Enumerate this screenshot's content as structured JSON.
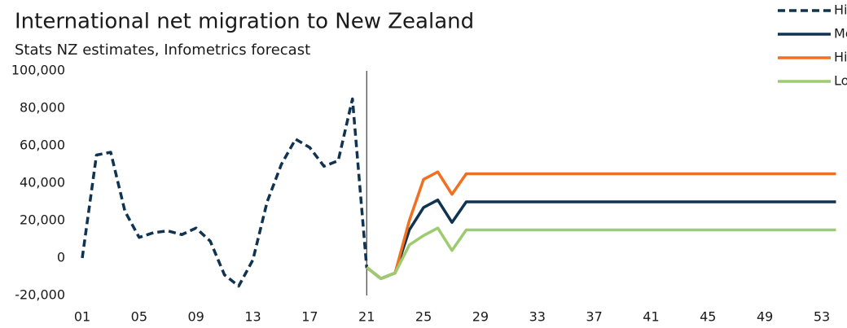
{
  "chart_data": {
    "type": "line",
    "title": "International net migration to New Zealand",
    "subtitle": "Stats NZ estimates, Infometrics forecast",
    "x": [
      1,
      2,
      3,
      4,
      5,
      6,
      7,
      8,
      9,
      10,
      11,
      12,
      13,
      14,
      15,
      16,
      17,
      18,
      19,
      20,
      21,
      22,
      23,
      24,
      25,
      26,
      27,
      28,
      29,
      30,
      31,
      32,
      33,
      34,
      35,
      36,
      37,
      38,
      39,
      40,
      41,
      42,
      43,
      44,
      45,
      46,
      47,
      48,
      49,
      50,
      51,
      52,
      53,
      54
    ],
    "series": [
      {
        "name": "Historical",
        "color": "#0f3350",
        "dashed": true,
        "values": [
          0,
          55000,
          56500,
          25000,
          11000,
          13500,
          14500,
          12500,
          16000,
          9000,
          -9000,
          -15000,
          -1000,
          30000,
          50000,
          63500,
          59000,
          49000,
          52000,
          85000,
          -5000,
          -11000,
          -8000,
          null,
          null,
          null,
          null,
          null,
          null,
          null,
          null,
          null,
          null,
          null,
          null,
          null,
          null,
          null,
          null,
          null,
          null,
          null,
          null,
          null,
          null,
          null,
          null,
          null,
          null,
          null,
          null,
          null,
          null,
          null
        ]
      },
      {
        "name": "Medium",
        "color": "#0f3350",
        "values": [
          null,
          null,
          null,
          null,
          null,
          null,
          null,
          null,
          null,
          null,
          null,
          null,
          null,
          null,
          null,
          null,
          null,
          null,
          null,
          null,
          -5000,
          -11000,
          -8000,
          15000,
          27000,
          31000,
          19000,
          30000,
          30000,
          30000,
          30000,
          30000,
          30000,
          30000,
          30000,
          30000,
          30000,
          30000,
          30000,
          30000,
          30000,
          30000,
          30000,
          30000,
          30000,
          30000,
          30000,
          30000,
          30000,
          30000,
          30000,
          30000,
          30000,
          30000
        ]
      },
      {
        "name": "High",
        "color": "#f07021",
        "values": [
          null,
          null,
          null,
          null,
          null,
          null,
          null,
          null,
          null,
          null,
          null,
          null,
          null,
          null,
          null,
          null,
          null,
          null,
          null,
          null,
          -5000,
          -11000,
          -8000,
          20000,
          42000,
          46000,
          34000,
          45000,
          45000,
          45000,
          45000,
          45000,
          45000,
          45000,
          45000,
          45000,
          45000,
          45000,
          45000,
          45000,
          45000,
          45000,
          45000,
          45000,
          45000,
          45000,
          45000,
          45000,
          45000,
          45000,
          45000,
          45000,
          45000,
          45000
        ]
      },
      {
        "name": "Low",
        "color": "#9dcb6f",
        "values": [
          null,
          null,
          null,
          null,
          null,
          null,
          null,
          null,
          null,
          null,
          null,
          null,
          null,
          null,
          null,
          null,
          null,
          null,
          null,
          null,
          -5000,
          -11000,
          -8000,
          7000,
          12000,
          16000,
          4000,
          15000,
          15000,
          15000,
          15000,
          15000,
          15000,
          15000,
          15000,
          15000,
          15000,
          15000,
          15000,
          15000,
          15000,
          15000,
          15000,
          15000,
          15000,
          15000,
          15000,
          15000,
          15000,
          15000,
          15000,
          15000,
          15000,
          15000
        ]
      }
    ],
    "xlim": [
      1,
      54
    ],
    "xticks": [
      {
        "value": 1,
        "label": "01"
      },
      {
        "value": 5,
        "label": "05"
      },
      {
        "value": 9,
        "label": "09"
      },
      13,
      17,
      21,
      25,
      29,
      33,
      37,
      41,
      45,
      49,
      53
    ],
    "ylim": [
      -20000,
      100000
    ],
    "yticks": [
      {
        "value": -20000,
        "label": "-20,000"
      },
      0,
      {
        "value": 20000,
        "label": "20,000"
      },
      {
        "value": 40000,
        "label": "40,000"
      },
      {
        "value": 60000,
        "label": "60,000"
      },
      {
        "value": 80000,
        "label": "80,000"
      },
      {
        "value": 100000,
        "label": "100,000"
      }
    ],
    "vline_x": 21,
    "grid": false,
    "legend": "top-right"
  }
}
